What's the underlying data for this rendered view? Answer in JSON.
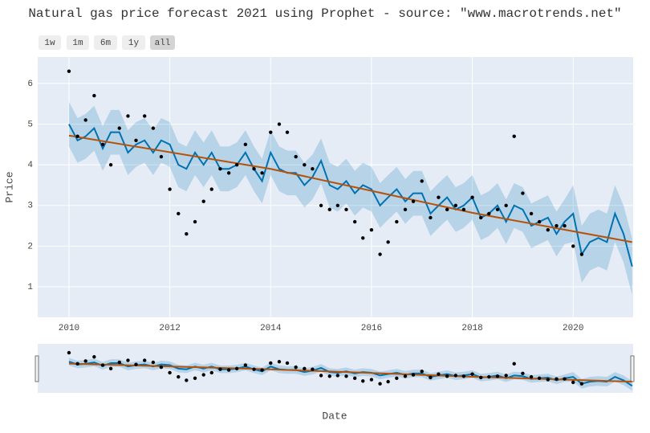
{
  "chart_data": {
    "type": "forecast",
    "title": "Natural gas price forecast 2021 using Prophet - source: \"www.macrotrends.net\"",
    "x_label": "Date",
    "y_label": "Price",
    "range_buttons": [
      "1w",
      "1m",
      "6m",
      "1y",
      "all"
    ],
    "active_button": 4,
    "xlim": [
      2009.38,
      2021.19
    ],
    "ylim": [
      0.25,
      6.65
    ],
    "xticks": [
      2010,
      2012,
      2014,
      2016,
      2018,
      2020
    ],
    "yticks": [
      1,
      2,
      3,
      4,
      5,
      6
    ],
    "grid": true,
    "x": [
      2010,
      2010.17,
      2010.33,
      2010.5,
      2010.67,
      2010.83,
      2011,
      2011.17,
      2011.33,
      2011.5,
      2011.67,
      2011.83,
      2012,
      2012.17,
      2012.33,
      2012.5,
      2012.67,
      2012.83,
      2013,
      2013.17,
      2013.33,
      2013.5,
      2013.67,
      2013.83,
      2014,
      2014.17,
      2014.33,
      2014.5,
      2014.67,
      2014.83,
      2015,
      2015.17,
      2015.33,
      2015.5,
      2015.67,
      2015.83,
      2016,
      2016.17,
      2016.33,
      2016.5,
      2016.67,
      2016.83,
      2017,
      2017.17,
      2017.33,
      2017.5,
      2017.67,
      2017.83,
      2018,
      2018.17,
      2018.33,
      2018.5,
      2018.67,
      2018.83,
      2019,
      2019.17,
      2019.33,
      2019.5,
      2019.67,
      2019.83,
      2020,
      2020.17,
      2020.33,
      2020.5,
      2020.67,
      2020.83,
      2021,
      2021.17
    ],
    "actual": {
      "color": "#000000",
      "values": [
        6.3,
        4.7,
        5.1,
        5.7,
        4.5,
        4.0,
        4.9,
        5.2,
        4.6,
        5.2,
        4.9,
        4.2,
        3.4,
        2.8,
        2.3,
        2.6,
        3.1,
        3.4,
        3.9,
        3.8,
        4.0,
        4.5,
        3.9,
        3.8,
        4.8,
        5.0,
        4.8,
        4.2,
        4.0,
        3.9,
        3.0,
        2.9,
        3.0,
        2.9,
        2.6,
        2.2,
        2.4,
        1.8,
        2.1,
        2.6,
        2.9,
        3.1,
        3.6,
        2.7,
        3.2,
        2.9,
        3.0,
        2.9,
        3.2,
        2.7,
        2.8,
        2.9,
        3.0,
        4.7,
        3.3,
        2.8,
        2.6,
        2.4,
        2.5,
        2.5,
        2.0,
        1.8,
        null,
        null,
        null,
        null,
        null,
        null
      ]
    },
    "forecast": {
      "color": "#0072b2",
      "values": [
        5.0,
        4.6,
        4.7,
        4.9,
        4.4,
        4.8,
        4.8,
        4.3,
        4.5,
        4.6,
        4.3,
        4.6,
        4.5,
        4.0,
        3.9,
        4.3,
        4.0,
        4.3,
        3.9,
        3.9,
        4.0,
        4.3,
        3.9,
        3.6,
        4.3,
        3.9,
        3.8,
        3.8,
        3.5,
        3.7,
        4.1,
        3.5,
        3.4,
        3.6,
        3.3,
        3.5,
        3.4,
        3.0,
        3.2,
        3.4,
        3.1,
        3.3,
        3.3,
        2.8,
        3.0,
        3.2,
        2.9,
        3.0,
        3.2,
        2.7,
        2.8,
        3.0,
        2.6,
        3.0,
        2.9,
        2.5,
        2.6,
        2.7,
        2.3,
        2.6,
        2.8,
        1.8,
        2.1,
        2.2,
        2.1,
        2.8,
        2.3,
        1.5
      ]
    },
    "upper": {
      "color": "#0072b2",
      "values": [
        5.55,
        5.15,
        5.25,
        5.45,
        4.95,
        5.35,
        5.35,
        4.85,
        5.05,
        5.15,
        4.85,
        5.15,
        5.05,
        4.55,
        4.45,
        4.85,
        4.55,
        4.85,
        4.45,
        4.45,
        4.55,
        4.85,
        4.45,
        4.15,
        4.85,
        4.45,
        4.35,
        4.35,
        4.05,
        4.25,
        4.65,
        4.05,
        3.95,
        4.15,
        3.85,
        4.05,
        3.95,
        3.55,
        3.75,
        3.95,
        3.65,
        3.85,
        3.85,
        3.35,
        3.55,
        3.75,
        3.45,
        3.55,
        3.75,
        3.25,
        3.35,
        3.55,
        3.15,
        3.55,
        3.45,
        3.05,
        3.15,
        3.25,
        2.85,
        3.15,
        3.5,
        2.5,
        2.8,
        2.9,
        2.8,
        3.5,
        3.0,
        2.2
      ]
    },
    "lower": {
      "color": "#0072b2",
      "values": [
        4.45,
        4.05,
        4.15,
        4.35,
        3.85,
        4.25,
        4.25,
        3.75,
        3.95,
        4.05,
        3.75,
        4.05,
        3.95,
        3.45,
        3.35,
        3.75,
        3.45,
        3.75,
        3.35,
        3.35,
        3.45,
        3.75,
        3.35,
        3.05,
        3.75,
        3.35,
        3.25,
        3.25,
        2.95,
        3.15,
        3.55,
        2.95,
        2.85,
        3.05,
        2.75,
        2.95,
        2.85,
        2.45,
        2.65,
        2.85,
        2.55,
        2.75,
        2.75,
        2.25,
        2.45,
        2.65,
        2.35,
        2.45,
        2.65,
        2.15,
        2.25,
        2.45,
        2.05,
        2.45,
        2.35,
        1.95,
        2.05,
        2.15,
        1.75,
        2.05,
        2.1,
        1.1,
        1.4,
        1.5,
        1.4,
        2.1,
        1.6,
        0.8
      ]
    },
    "trend": {
      "color": "#b5520a",
      "x": [
        2010,
        2014,
        2018,
        2021.17
      ],
      "values": [
        4.72,
        3.9,
        2.82,
        2.1
      ]
    }
  }
}
